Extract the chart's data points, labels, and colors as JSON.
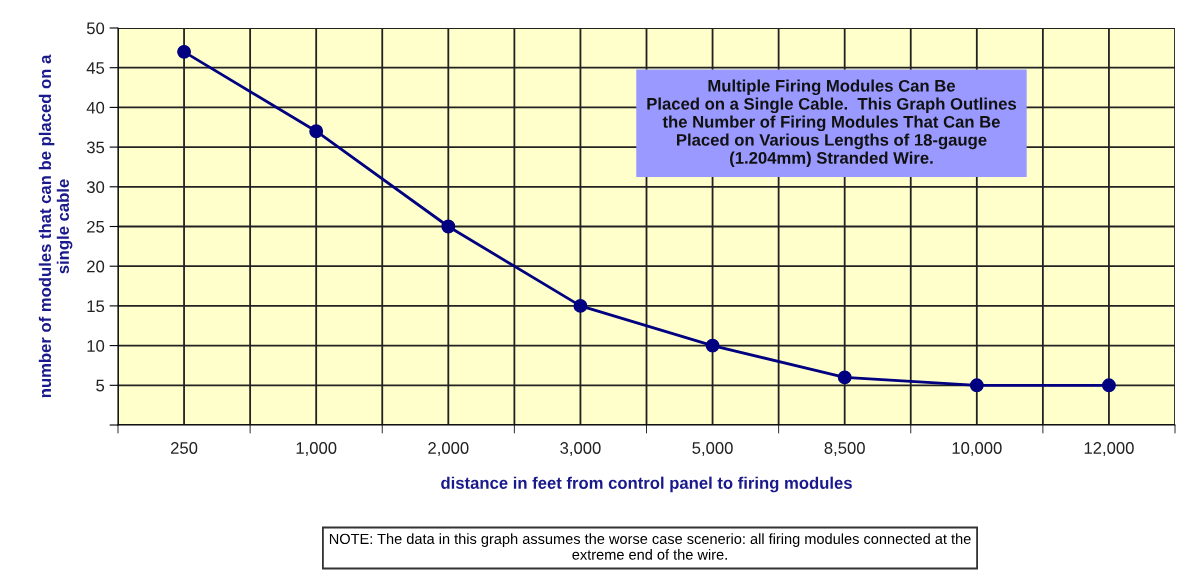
{
  "chart_data": {
    "type": "line",
    "categories": [
      "250",
      "1,000",
      "2,000",
      "3,000",
      "5,000",
      "8,500",
      "10,000",
      "12,000"
    ],
    "series": [
      {
        "color": "#000080",
        "values": [
          47,
          37,
          25,
          15,
          10,
          6,
          5,
          5
        ]
      }
    ],
    "xlabel": "distance in feet from control panel to firing modules",
    "ylabel": "number of modules that can be placed on a\nsingle cable",
    "ylim": [
      0,
      50
    ],
    "yticks": [
      {
        "value": 0,
        "label": null
      },
      5,
      10,
      15,
      20,
      25,
      30,
      35,
      40,
      45,
      50
    ],
    "grid": true,
    "legend": false,
    "marker": "circle",
    "line_style": "solid",
    "annotations": [
      "Multiple Firing Modules Can Be\nPlaced on a Single Cable.  This Graph Outlines\nthe Number of Firing Modules That Can Be\nPlaced on Various Lengths of 18-gauge\n(1.204mm) Stranded Wire.",
      "NOTE: The data in this graph assumes the worse case scenerio: all firing modules connected at the\nextreme end of the wire."
    ]
  }
}
